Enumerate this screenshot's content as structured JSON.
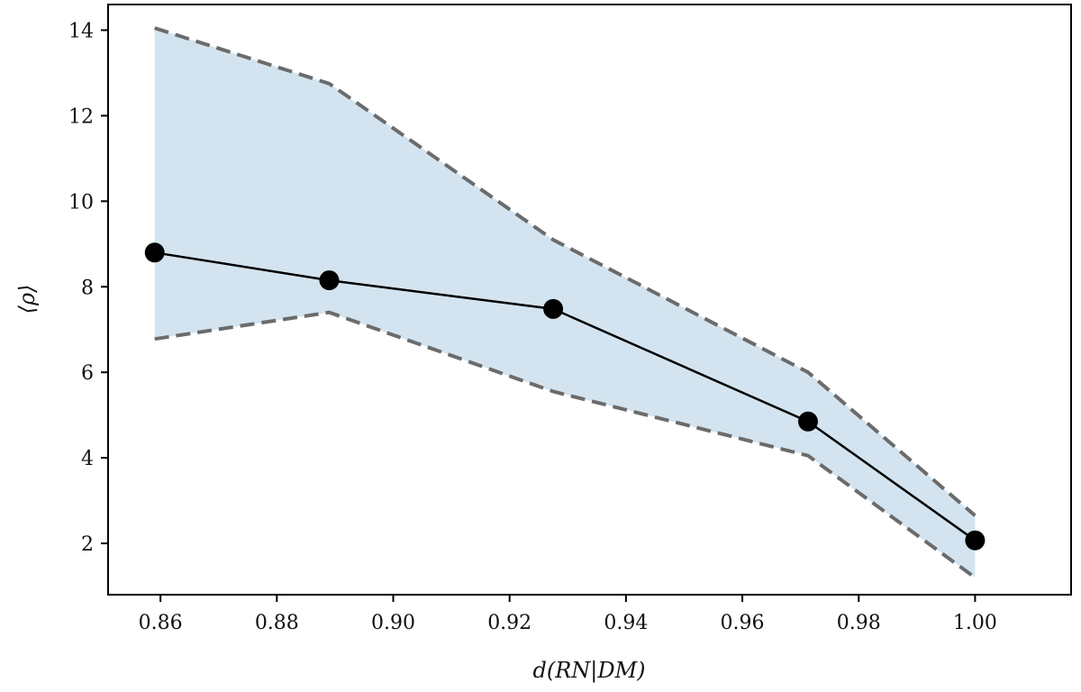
{
  "chart_data": {
    "type": "line",
    "title": "",
    "xlabel": "d(RN|DM)",
    "ylabel": "⟨ρ⟩",
    "xlim": [
      0.851,
      1.0165
    ],
    "ylim": [
      0.8,
      14.6
    ],
    "x_ticks": [
      0.86,
      0.88,
      0.9,
      0.92,
      0.94,
      0.96,
      0.98,
      1.0
    ],
    "x_tick_labels": [
      "0.86",
      "0.88",
      "0.90",
      "0.92",
      "0.94",
      "0.96",
      "0.98",
      "1.00"
    ],
    "y_ticks": [
      2,
      4,
      6,
      8,
      10,
      12,
      14
    ],
    "y_tick_labels": [
      "2",
      "4",
      "6",
      "8",
      "10",
      "12",
      "14"
    ],
    "grid": false,
    "legend": null,
    "series": [
      {
        "x": [
          0.859,
          0.889,
          0.9275,
          0.9713,
          1.0
        ],
        "y": [
          8.8,
          8.15,
          7.48,
          4.85,
          2.07
        ],
        "upper": [
          14.05,
          12.75,
          9.1,
          6.0,
          2.65
        ],
        "lower": [
          6.78,
          7.4,
          5.55,
          4.05,
          1.2
        ]
      }
    ],
    "colors": {
      "band_fill": "#d3e4f0",
      "band_edge": "#6b6b6b",
      "line": "#000000",
      "marker": "#000000"
    }
  }
}
